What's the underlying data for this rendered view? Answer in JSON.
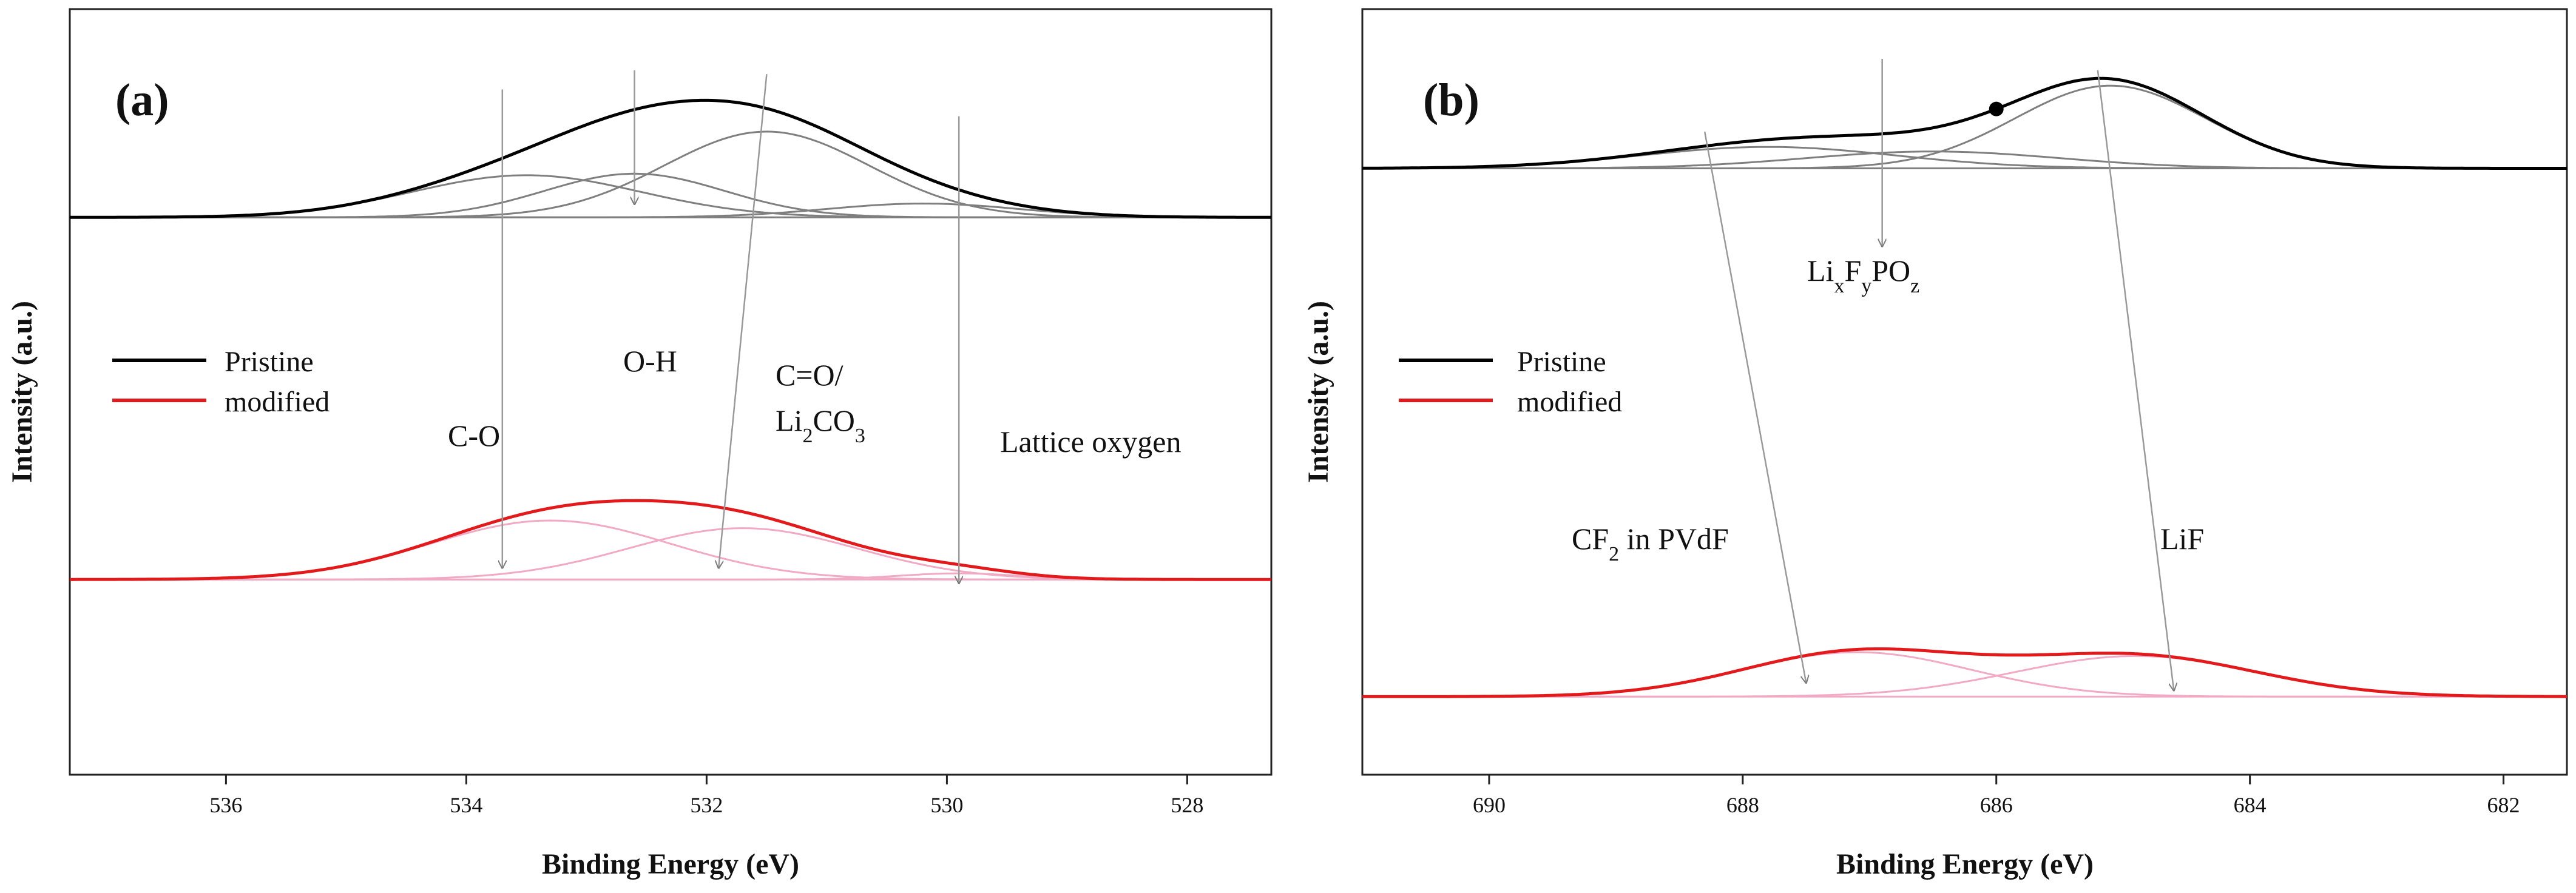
{
  "chart_data": [
    {
      "type": "line",
      "panel_label": "(a)",
      "xlabel": "Binding Energy (eV)",
      "ylabel": "Intensity (a.u.)",
      "xlim": [
        537.3,
        527.3
      ],
      "x_reversed": true,
      "xticks": [
        536,
        534,
        532,
        530,
        528
      ],
      "xtick_labels": [
        "536",
        "534",
        "532",
        "530",
        "528"
      ],
      "ylim": [
        0,
        1
      ],
      "legend": {
        "entries": [
          {
            "name": "Pristine",
            "color": "#000000"
          },
          {
            "name": "modified",
            "color": "#e31a1c"
          }
        ],
        "position": "middle-left"
      },
      "colors": {
        "pristine": "#000000",
        "pristine_components": "#7f7f7f",
        "modified": "#e31a1c",
        "modified_components": "#f2a9c4",
        "arrows": "#999999"
      },
      "series": [
        {
          "name": "Pristine",
          "baseline": 0.728,
          "peaks": [
            {
              "label": "C-O",
              "center": 533.5,
              "height": 0.055,
              "sigma": 0.95
            },
            {
              "label": "O-H",
              "center": 532.6,
              "height": 0.057,
              "sigma": 0.75
            },
            {
              "label": "C=O/Li2CO3",
              "center": 531.5,
              "height": 0.112,
              "sigma": 0.85
            },
            {
              "label": "Lattice oxygen",
              "center": 530.2,
              "height": 0.018,
              "sigma": 0.8
            }
          ]
        },
        {
          "name": "modified",
          "baseline": 0.255,
          "peaks": [
            {
              "label": "C-O",
              "center": 533.3,
              "height": 0.077,
              "sigma": 1.0
            },
            {
              "label": "C=O/Li2CO3",
              "center": 531.7,
              "height": 0.067,
              "sigma": 0.95
            },
            {
              "label": "Lattice oxygen",
              "center": 529.9,
              "height": 0.008,
              "sigma": 0.5
            }
          ]
        }
      ],
      "annotations": [
        {
          "parts": [
            {
              "t": "C-O"
            }
          ]
        },
        {
          "parts": [
            {
              "t": "O-H"
            }
          ]
        },
        {
          "parts": [
            {
              "t": "C=O/"
            }
          ]
        },
        {
          "parts": [
            {
              "t": "Li"
            },
            {
              "t": "2",
              "sub": true
            },
            {
              "t": "CO"
            },
            {
              "t": "3",
              "sub": true
            }
          ]
        },
        {
          "parts": [
            {
              "t": "Lattice oxygen"
            }
          ]
        }
      ],
      "arrows": [
        {
          "from_x": 533.7,
          "from_y": 0.895,
          "to_x": 533.7,
          "to_y": 0.27
        },
        {
          "from_x": 532.6,
          "from_y": 0.92,
          "to_x": 532.6,
          "to_y": 0.745
        },
        {
          "from_x": 531.5,
          "from_y": 0.915,
          "to_x": 531.9,
          "to_y": 0.27
        },
        {
          "from_x": 529.9,
          "from_y": 0.86,
          "to_x": 529.9,
          "to_y": 0.25
        }
      ]
    },
    {
      "type": "line",
      "panel_label": "(b)",
      "xlabel": "Binding Energy (eV)",
      "ylabel": "Intensity (a.u.)",
      "xlim": [
        691.0,
        681.5
      ],
      "x_reversed": true,
      "xticks": [
        690,
        688,
        686,
        684,
        682
      ],
      "xtick_labels": [
        "690",
        "688",
        "686",
        "684",
        "682"
      ],
      "ylim": [
        0,
        1
      ],
      "legend": {
        "entries": [
          {
            "name": "Pristine",
            "color": "#000000"
          },
          {
            "name": "modified",
            "color": "#e31a1c"
          }
        ],
        "position": "middle-left"
      },
      "colors": {
        "pristine": "#000000",
        "pristine_components": "#7f7f7f",
        "modified": "#e31a1c",
        "modified_components": "#f2a9c4",
        "arrows": "#999999",
        "marker": "#000000"
      },
      "series": [
        {
          "name": "Pristine",
          "baseline": 0.792,
          "peaks": [
            {
              "label": "CF2 in PVdF",
              "center": 687.8,
              "height": 0.028,
              "sigma": 1.0
            },
            {
              "label": "LixFyPOz",
              "center": 686.5,
              "height": 0.022,
              "sigma": 1.0
            },
            {
              "label": "LiF",
              "center": 685.1,
              "height": 0.108,
              "sigma": 0.75
            }
          ]
        },
        {
          "name": "modified",
          "baseline": 0.102,
          "peaks": [
            {
              "label": "CF2 in PVdF",
              "center": 687.1,
              "height": 0.058,
              "sigma": 0.9
            },
            {
              "label": "LiF",
              "center": 684.9,
              "height": 0.053,
              "sigma": 0.95
            }
          ]
        }
      ],
      "marker_point": {
        "x": 686.0,
        "series": "Pristine"
      },
      "annotations": [
        {
          "parts": [
            {
              "t": "Li"
            },
            {
              "t": "x",
              "sub": true
            },
            {
              "t": "F"
            },
            {
              "t": "y",
              "sub": true
            },
            {
              "t": "PO"
            },
            {
              "t": "z",
              "sub": true
            }
          ]
        },
        {
          "parts": [
            {
              "t": "CF"
            },
            {
              "t": "2",
              "sub": true
            },
            {
              "t": " in PVdF"
            }
          ]
        },
        {
          "parts": [
            {
              "t": "LiF"
            }
          ]
        }
      ],
      "arrows": [
        {
          "from_x": 686.9,
          "from_y": 0.935,
          "to_x": 686.9,
          "to_y": 0.69
        },
        {
          "from_x": 688.3,
          "from_y": 0.84,
          "to_x": 687.5,
          "to_y": 0.12
        },
        {
          "from_x": 685.2,
          "from_y": 0.92,
          "to_x": 684.6,
          "to_y": 0.11
        }
      ]
    }
  ]
}
